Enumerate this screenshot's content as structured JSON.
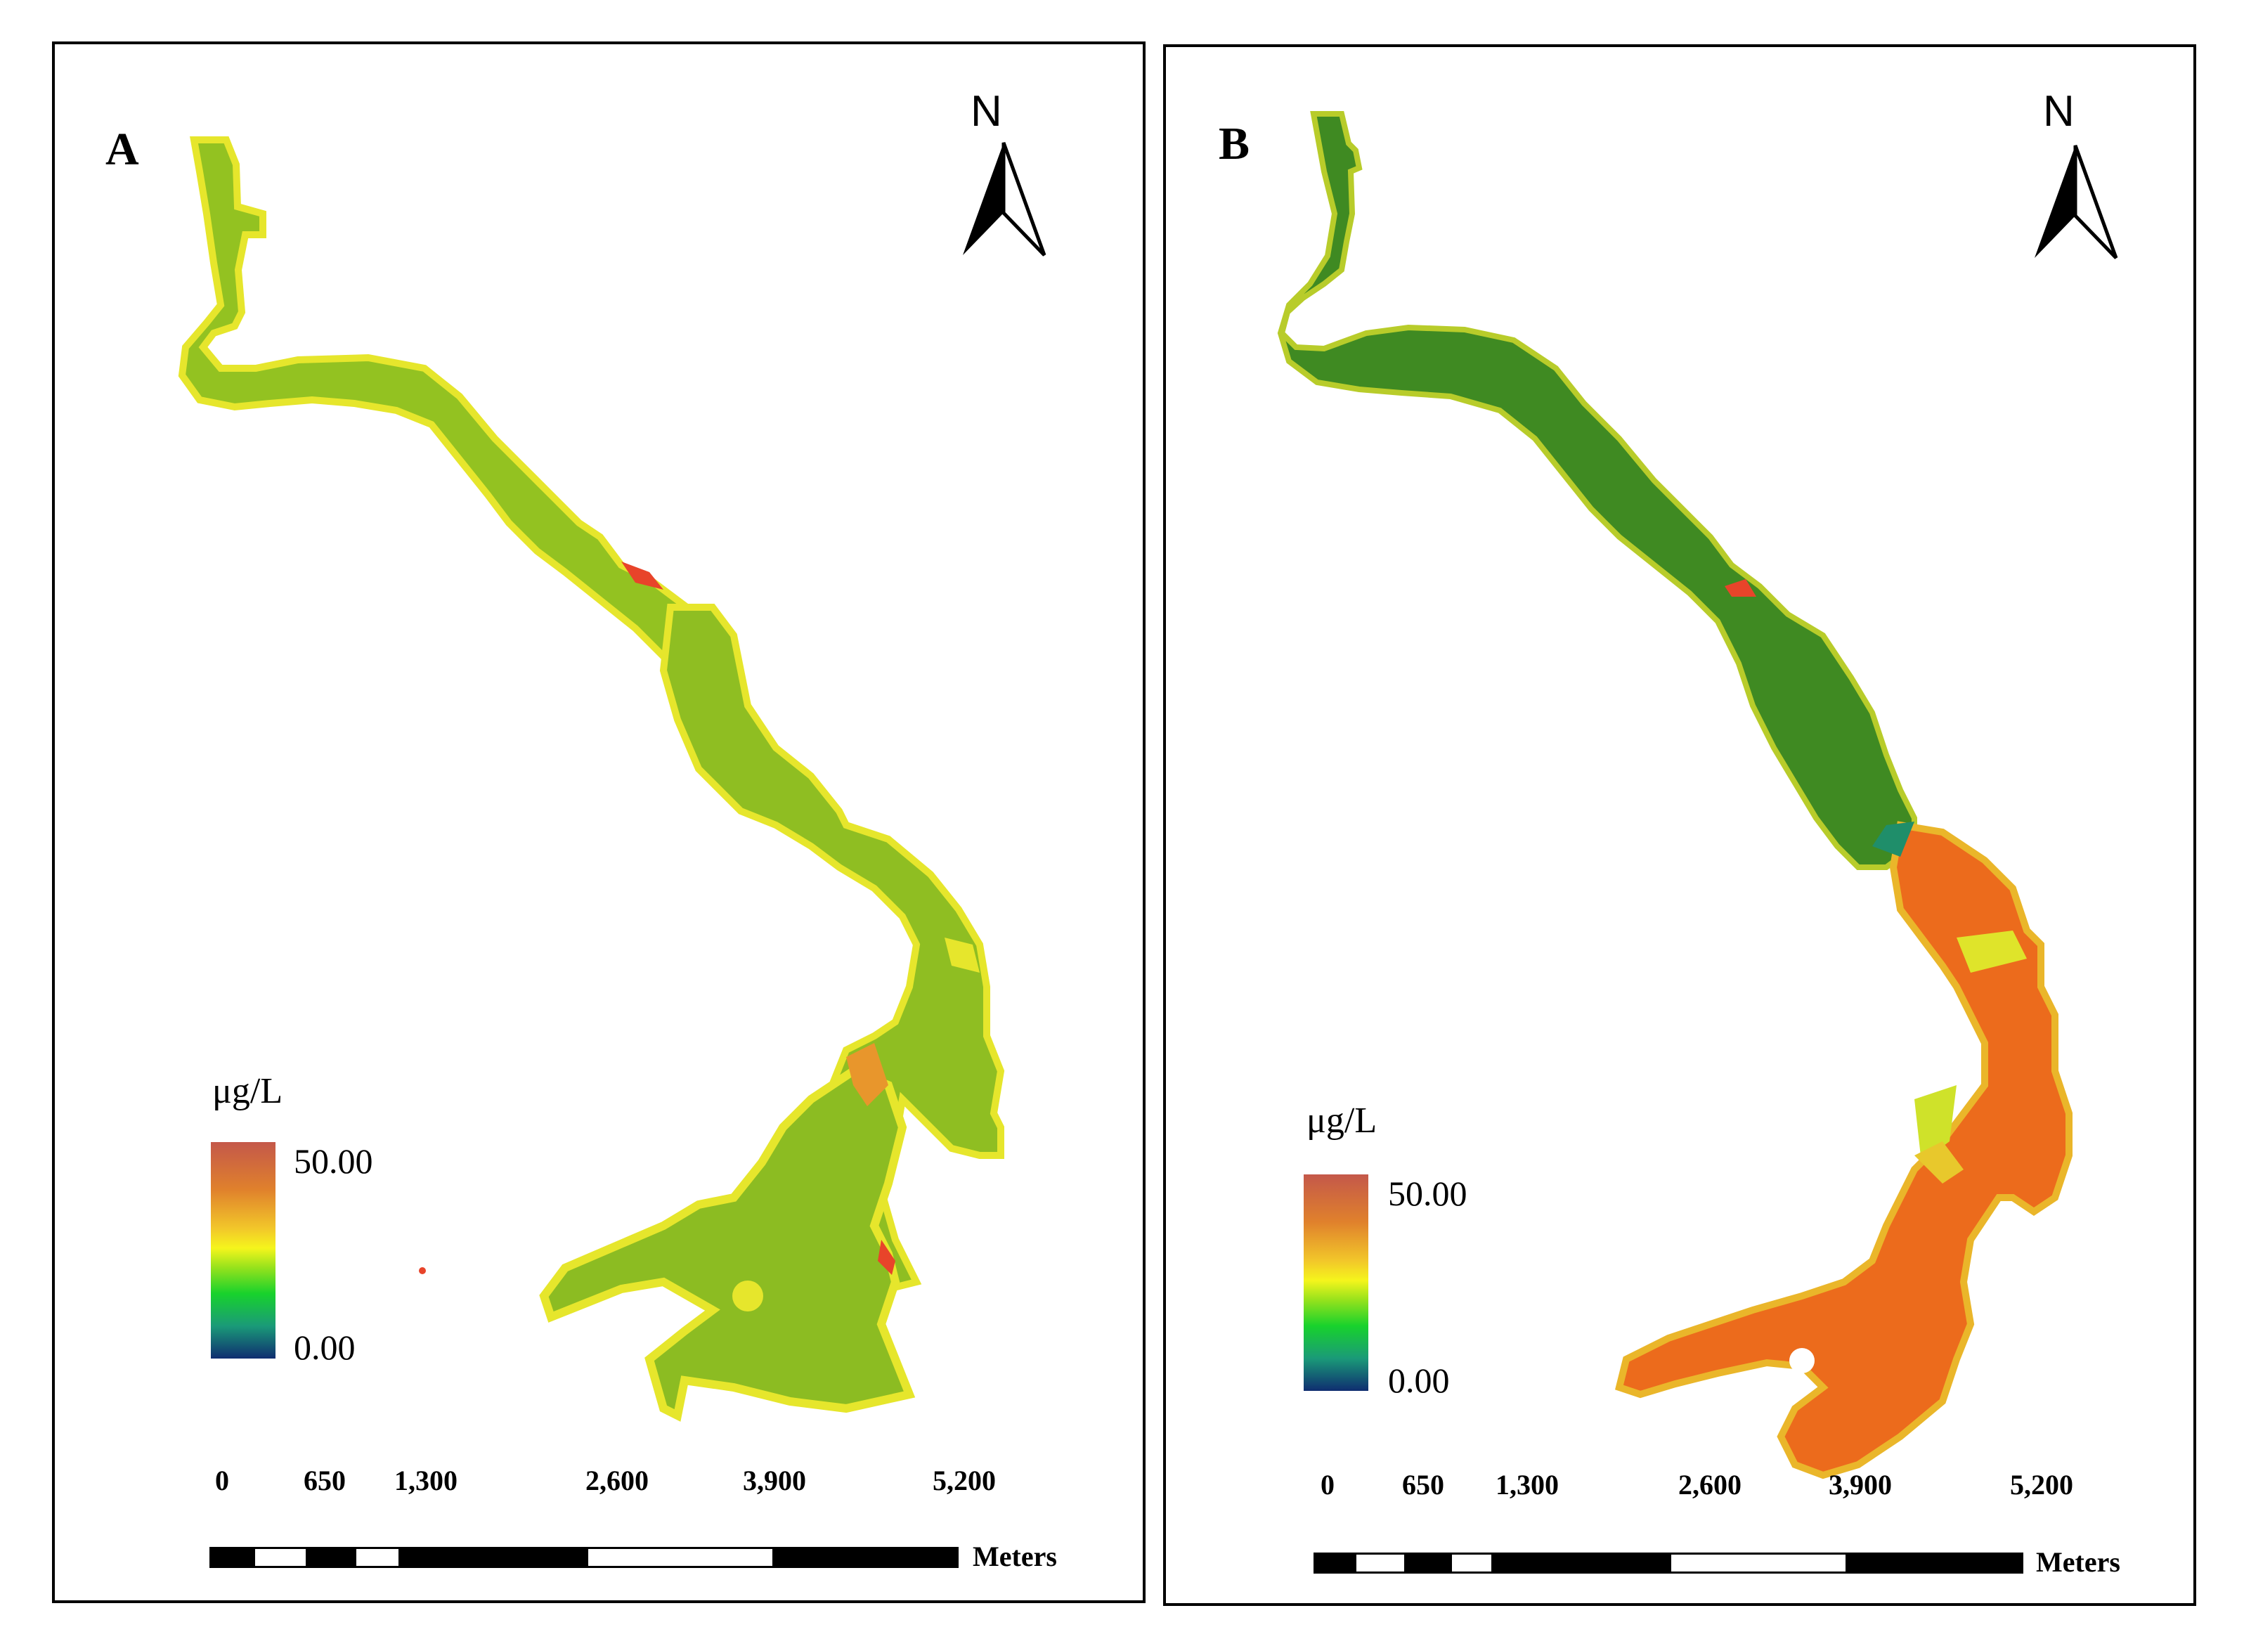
{
  "panels": [
    {
      "label": "A",
      "north": "N",
      "legend": {
        "unit": "μg/L",
        "max": "50.00",
        "min": "0.00"
      },
      "scale": {
        "ticks": [
          "0",
          "650",
          "1,300",
          "2,600",
          "3,900",
          "5,200"
        ],
        "unit": "Meters"
      },
      "fill_colors": {
        "water": "#8dc020",
        "edge": "#e8ea2c",
        "hot": "#e0452a"
      }
    },
    {
      "label": "B",
      "north": "N",
      "legend": {
        "unit": "μg/L",
        "max": "50.00",
        "min": "0.00"
      },
      "scale": {
        "ticks": [
          "0",
          "650",
          "1,300",
          "2,600",
          "3,900",
          "5,200"
        ],
        "unit": "Meters"
      },
      "fill_colors": {
        "upstream": "#3f8a1e",
        "downstream": "#ec6a1c",
        "edge": "#e8ea2c"
      }
    }
  ],
  "colormap": [
    "#c4584a",
    "#e0812c",
    "#f5f51c",
    "#18d22c",
    "#1a9a78",
    "#0f2d70"
  ]
}
